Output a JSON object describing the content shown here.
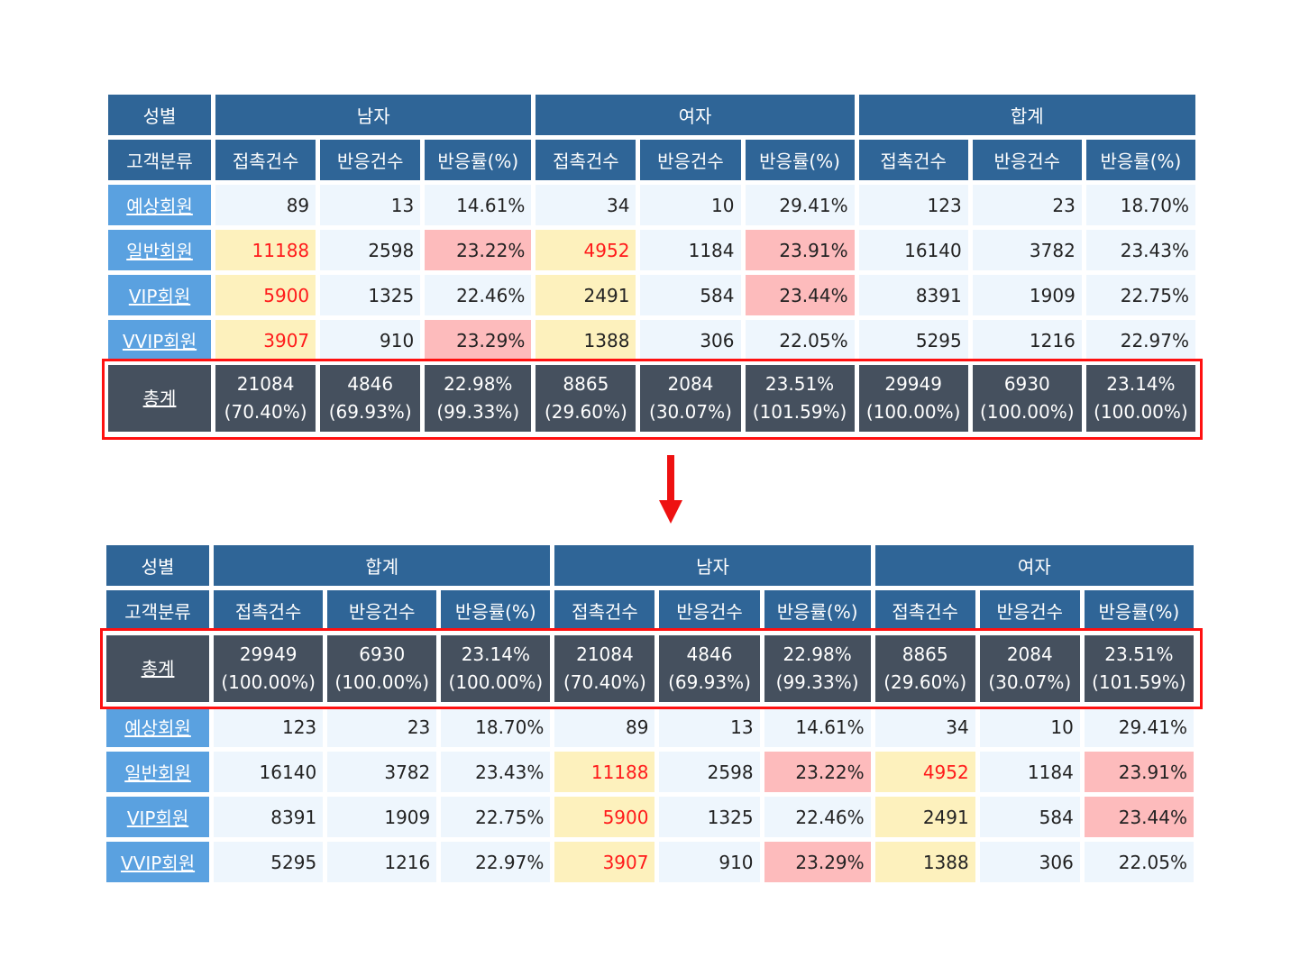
{
  "colors": {
    "header_bg": "#2f6597",
    "row_label_bg": "#5aa1e0",
    "cell_bg": "#eef6fd",
    "highlight_yellow": "#fdf1bd",
    "highlight_pink": "#fdbbbc",
    "red_text": "#ff1a1a",
    "total_bg": "#45505e",
    "outline": "#ff1111"
  },
  "icons": {
    "arrow": "down-arrow-icon"
  },
  "before": {
    "corner_top": "성별",
    "corner_sub": "고객분류",
    "groups": [
      "남자",
      "여자",
      "합계"
    ],
    "subheaders": [
      "접촉건수",
      "반응건수",
      "반응률(%)",
      "접촉건수",
      "반응건수",
      "반응률(%)",
      "접촉건수",
      "반응건수",
      "반응률(%)"
    ],
    "rows": [
      {
        "label": "예상회원",
        "cells": [
          "89",
          "13",
          "14.61%",
          "34",
          "10",
          "29.41%",
          "123",
          "23",
          "18.70%"
        ]
      },
      {
        "label": "일반회원",
        "cells": [
          "11188",
          "2598",
          "23.22%",
          "4952",
          "1184",
          "23.91%",
          "16140",
          "3782",
          "23.43%"
        ]
      },
      {
        "label": "VIP회원",
        "cells": [
          "5900",
          "1325",
          "22.46%",
          "2491",
          "584",
          "23.44%",
          "8391",
          "1909",
          "22.75%"
        ]
      },
      {
        "label": "VVIP회원",
        "cells": [
          "3907",
          "910",
          "23.29%",
          "1388",
          "306",
          "22.05%",
          "5295",
          "1216",
          "22.97%"
        ]
      }
    ],
    "total": {
      "label": "총계",
      "cells": [
        [
          "21084",
          "(70.40%)"
        ],
        [
          "4846",
          "(69.93%)"
        ],
        [
          "22.98%",
          "(99.33%)"
        ],
        [
          "8865",
          "(29.60%)"
        ],
        [
          "2084",
          "(30.07%)"
        ],
        [
          "23.51%",
          "(101.59%)"
        ],
        [
          "29949",
          "(100.00%)"
        ],
        [
          "6930",
          "(100.00%)"
        ],
        [
          "23.14%",
          "(100.00%)"
        ]
      ]
    }
  },
  "after": {
    "corner_top": "성별",
    "corner_sub": "고객분류",
    "groups": [
      "합계",
      "남자",
      "여자"
    ],
    "subheaders": [
      "접촉건수",
      "반응건수",
      "반응률(%)",
      "접촉건수",
      "반응건수",
      "반응률(%)",
      "접촉건수",
      "반응건수",
      "반응률(%)"
    ],
    "total": {
      "label": "총계",
      "cells": [
        [
          "29949",
          "(100.00%)"
        ],
        [
          "6930",
          "(100.00%)"
        ],
        [
          "23.14%",
          "(100.00%)"
        ],
        [
          "21084",
          "(70.40%)"
        ],
        [
          "4846",
          "(69.93%)"
        ],
        [
          "22.98%",
          "(99.33%)"
        ],
        [
          "8865",
          "(29.60%)"
        ],
        [
          "2084",
          "(30.07%)"
        ],
        [
          "23.51%",
          "(101.59%)"
        ]
      ]
    },
    "rows": [
      {
        "label": "예상회원",
        "cells": [
          "123",
          "23",
          "18.70%",
          "89",
          "13",
          "14.61%",
          "34",
          "10",
          "29.41%"
        ]
      },
      {
        "label": "일반회원",
        "cells": [
          "16140",
          "3782",
          "23.43%",
          "11188",
          "2598",
          "23.22%",
          "4952",
          "1184",
          "23.91%"
        ]
      },
      {
        "label": "VIP회원",
        "cells": [
          "8391",
          "1909",
          "22.75%",
          "5900",
          "1325",
          "22.46%",
          "2491",
          "584",
          "23.44%"
        ]
      },
      {
        "label": "VVIP회원",
        "cells": [
          "5295",
          "1216",
          "22.97%",
          "3907",
          "910",
          "23.29%",
          "1388",
          "306",
          "22.05%"
        ]
      }
    ]
  }
}
